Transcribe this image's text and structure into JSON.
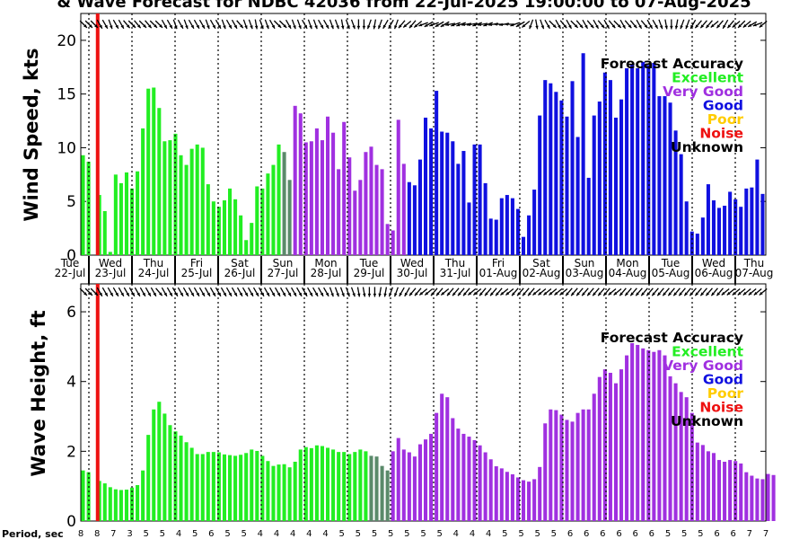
{
  "title": "& Wave Forecast for NDBC 42036 from 22-Jul-2025 19:00:00 to 07-Aug-2025",
  "colors": {
    "Excellent": "#22ee22",
    "Very Good": "#a030e0",
    "Good": "#1010e0",
    "Poor": "#ffcc00",
    "Noise": "#ee1111",
    "Unknown": "#000000",
    "transition": "#5a8a6a"
  },
  "legend": {
    "title": "Forecast Accuracy",
    "items": [
      "Excellent",
      "Very Good",
      "Good",
      "Poor",
      "Noise",
      "Unknown"
    ]
  },
  "day_labels": [
    {
      "dow": "Tue",
      "date": "22-Jul"
    },
    {
      "dow": "Wed",
      "date": "23-Jul"
    },
    {
      "dow": "Thu",
      "date": "24-Jul"
    },
    {
      "dow": "Fri",
      "date": "25-Jul"
    },
    {
      "dow": "Sat",
      "date": "26-Jul"
    },
    {
      "dow": "Sun",
      "date": "27-Jul"
    },
    {
      "dow": "Mon",
      "date": "28-Jul"
    },
    {
      "dow": "Tue",
      "date": "29-Jul"
    },
    {
      "dow": "Wed",
      "date": "30-Jul"
    },
    {
      "dow": "Thu",
      "date": "31-Jul"
    },
    {
      "dow": "Fri",
      "date": "01-Aug"
    },
    {
      "dow": "Sat",
      "date": "02-Aug"
    },
    {
      "dow": "Sun",
      "date": "03-Aug"
    },
    {
      "dow": "Mon",
      "date": "04-Aug"
    },
    {
      "dow": "Tue",
      "date": "05-Aug"
    },
    {
      "dow": "Wed",
      "date": "06-Aug"
    },
    {
      "dow": "Thu",
      "date": "07-Aug"
    }
  ],
  "chart_data": [
    {
      "type": "bar",
      "ylabel": "Wind Speed, kts",
      "ylim": [
        0,
        22.5
      ],
      "yticks": [
        0,
        5,
        10,
        15,
        20
      ],
      "values": [
        9.3,
        8.7,
        0.0,
        5.6,
        4.1,
        0.3,
        7.5,
        6.7,
        7.7,
        6.2,
        7.8,
        11.8,
        15.5,
        15.6,
        13.7,
        10.6,
        10.7,
        11.3,
        9.3,
        8.4,
        9.9,
        10.3,
        10.0,
        6.6,
        5.0,
        4.5,
        5.1,
        6.2,
        5.2,
        3.7,
        1.4,
        3.0,
        6.4,
        6.2,
        7.6,
        8.4,
        10.3,
        9.6,
        7.0,
        13.9,
        13.2,
        10.5,
        10.6,
        11.8,
        10.7,
        12.9,
        11.4,
        8.0,
        12.4,
        9.1,
        6.0,
        7.0,
        9.6,
        10.1,
        8.4,
        8.0,
        2.9,
        2.3,
        12.6,
        8.5,
        6.8,
        6.5,
        8.9,
        12.8,
        11.8,
        15.3,
        11.5,
        11.4,
        10.6,
        8.5,
        9.7,
        4.9,
        10.3,
        10.3,
        6.7,
        3.4,
        3.3,
        5.3,
        5.6,
        5.3,
        4.3,
        1.7,
        3.7,
        6.1,
        13.0,
        16.3,
        16.0,
        15.2,
        14.4,
        12.9,
        16.2,
        11.0,
        18.8,
        7.2,
        13.0,
        14.3,
        17.0,
        16.3,
        12.8,
        14.5,
        17.4,
        17.8,
        17.4,
        18.0,
        17.7,
        17.9,
        14.8,
        14.8,
        14.2,
        11.6,
        9.4,
        5.0,
        2.2,
        2.0,
        3.5,
        6.6,
        5.1,
        4.4,
        4.6,
        5.9,
        5.2,
        4.5,
        6.2,
        6.3,
        8.9,
        5.7
      ]
    },
    {
      "type": "bar",
      "ylabel": "Wave Height, ft",
      "ylim": [
        0,
        6.8
      ],
      "yticks": [
        0,
        2,
        4,
        6
      ],
      "values": [
        1.45,
        1.4,
        0.0,
        1.15,
        1.08,
        0.97,
        0.91,
        0.89,
        0.9,
        0.96,
        1.03,
        1.45,
        2.47,
        3.2,
        3.42,
        3.08,
        2.75,
        2.57,
        2.45,
        2.26,
        2.1,
        1.92,
        1.92,
        1.98,
        1.98,
        1.97,
        1.91,
        1.89,
        1.87,
        1.9,
        1.95,
        2.05,
        2.01,
        1.87,
        1.72,
        1.58,
        1.62,
        1.63,
        1.54,
        1.7,
        2.05,
        2.12,
        2.09,
        2.17,
        2.15,
        2.1,
        2.05,
        1.98,
        1.98,
        1.92,
        1.98,
        2.05,
        2.0,
        1.87,
        1.85,
        1.58,
        1.45,
        2.0,
        2.38,
        2.05,
        1.97,
        1.85,
        2.2,
        2.34,
        2.5,
        3.1,
        3.65,
        3.55,
        2.95,
        2.65,
        2.5,
        2.42,
        2.32,
        2.17,
        1.97,
        1.77,
        1.57,
        1.51,
        1.41,
        1.34,
        1.25,
        1.17,
        1.13,
        1.2,
        1.55,
        2.8,
        3.2,
        3.18,
        3.05,
        2.9,
        2.85,
        3.1,
        3.2,
        3.2,
        3.65,
        4.13,
        4.35,
        4.25,
        3.95,
        4.35,
        4.75,
        5.1,
        5.05,
        4.95,
        4.9,
        4.85,
        4.9,
        4.75,
        4.15,
        3.95,
        3.7,
        3.55,
        3.1,
        2.25,
        2.18,
        2.0,
        1.95,
        1.75,
        1.7,
        1.75,
        1.72,
        1.65,
        1.4,
        1.3,
        1.22,
        1.2,
        1.35,
        1.32
      ]
    }
  ],
  "wind_colors": "EEEEEEEEEEEEEEEEEEEEEEEEEEEEEEEEEEEEETTVVVVVVVVVVVVVVVVVVVVVGGGGGGGGGGGGGGGGGGGGGGGGGGGGGGGGGGGGGGGGGGGGGGGGGGGGGGGGGGGGGGGGGGGGGGGGGGGGG",
  "wave_colors": "EEEEEEEEEEEEEEEEEEEEEEEEEEEEEEEEEEEEEEEEEEEEEEEEEEEEETTTTVVVVVVVVVVVVVVVVVVVVVVVVVVVVVVVVVVVVVVVVVVVVVVVVVVVVVVVVVVVVVVVVVVVVVVVVVVVV",
  "wind_dir_angles": [
    135,
    135,
    135,
    150,
    150,
    160,
    150,
    150,
    140,
    135,
    140,
    135,
    140,
    135,
    135,
    150,
    150,
    160,
    150,
    160,
    150,
    150,
    150,
    160,
    150,
    150,
    160,
    150,
    150,
    140,
    160,
    160,
    170,
    160,
    160,
    150,
    135,
    135,
    150,
    160,
    160,
    150,
    160,
    160,
    150,
    150,
    160,
    160,
    170,
    160,
    160,
    180,
    180,
    200,
    190,
    200,
    210,
    210,
    200,
    220,
    230,
    220,
    230,
    250,
    240,
    250,
    240,
    240,
    260,
    250,
    250,
    260,
    260,
    250,
    260,
    250,
    260,
    270,
    260,
    270,
    250,
    240,
    230,
    200,
    170,
    160,
    150,
    135,
    150,
    140,
    150,
    135,
    140,
    150,
    140,
    150,
    140,
    150,
    140,
    135,
    150,
    140,
    140,
    150,
    140,
    150,
    150,
    160,
    170,
    180,
    190,
    200,
    200,
    210,
    220,
    220,
    220,
    230,
    220,
    210,
    220,
    230,
    225,
    230,
    240,
    250,
    230
  ],
  "wave_dir_angles": [
    135,
    135,
    135,
    150,
    150,
    150,
    150,
    150,
    150,
    150,
    150,
    150,
    150,
    150,
    140,
    150,
    150,
    150,
    150,
    150,
    150,
    150,
    150,
    150,
    150,
    150,
    150,
    150,
    150,
    150,
    150,
    150,
    150,
    150,
    150,
    150,
    150,
    150,
    150,
    150,
    150,
    150,
    150,
    150,
    150,
    150,
    160,
    160,
    160,
    160,
    160,
    170,
    170,
    180,
    180,
    190,
    190,
    200,
    200,
    210,
    210,
    220,
    220,
    230,
    230,
    220,
    220,
    230,
    220,
    220,
    220,
    220,
    230,
    230,
    220,
    220,
    220,
    220,
    230,
    230,
    220,
    220,
    220,
    220,
    230,
    230,
    230,
    230,
    230,
    230,
    220,
    220,
    220,
    220,
    220,
    220,
    220,
    220,
    230,
    230,
    220,
    220,
    220,
    220,
    220,
    220,
    220,
    220,
    220,
    220,
    220,
    220,
    220,
    220,
    220,
    220,
    220,
    220,
    220,
    230,
    230,
    230,
    230,
    230,
    230,
    230,
    230
  ],
  "period": {
    "label": "Period, sec",
    "values": [
      8,
      8,
      7,
      3,
      5,
      5,
      4,
      5,
      6,
      5,
      5,
      4,
      4,
      4,
      4,
      4,
      5,
      5,
      5,
      5,
      5,
      5,
      5,
      4,
      4,
      4,
      5,
      5,
      5,
      5,
      6,
      6,
      6,
      6,
      6,
      6,
      5,
      5,
      5,
      6,
      6,
      7,
      7
    ]
  },
  "noise_line_index": 2.6
}
